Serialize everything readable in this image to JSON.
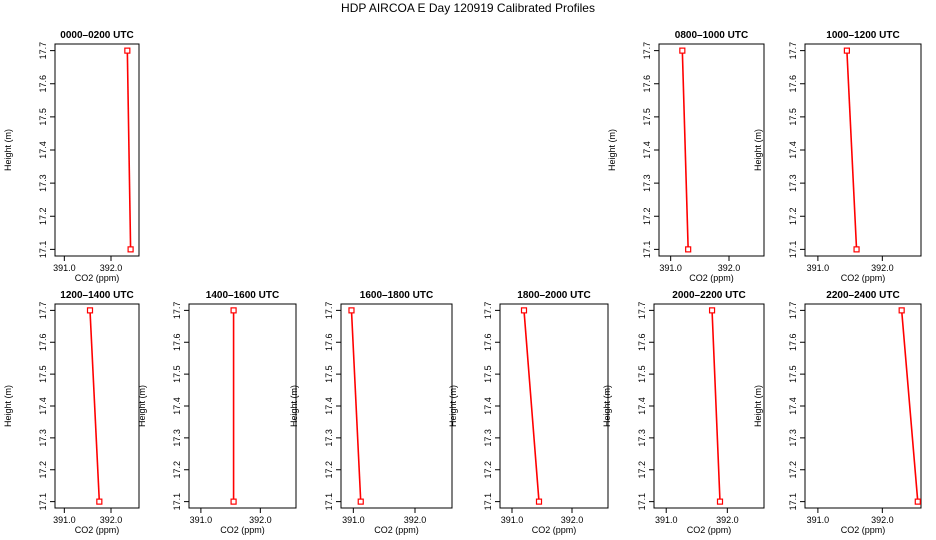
{
  "title": "HDP AIRCOA E  Day 120919  Calibrated Profiles",
  "axes": {
    "xlabel": "CO2 (ppm)",
    "ylabel": "Height (m)",
    "xlim": [
      390.8,
      392.6
    ],
    "ylim": [
      17.08,
      17.72
    ],
    "xticks": [
      "391.0",
      "392.0"
    ],
    "xtick_values": [
      391.0,
      392.0
    ],
    "yticks": [
      "17.1",
      "17.2",
      "17.3",
      "17.4",
      "17.5",
      "17.6",
      "17.7"
    ],
    "ytick_values": [
      17.1,
      17.2,
      17.3,
      17.4,
      17.5,
      17.6,
      17.7
    ]
  },
  "style": {
    "line_color": "#ff0000",
    "marker": "open-square",
    "axis_color": "#000000"
  },
  "chart_data": [
    {
      "type": "line",
      "title": "0000–0200 UTC",
      "x": [
        392.35,
        392.42
      ],
      "y": [
        17.7,
        17.1
      ]
    },
    {
      "type": "line",
      "title": "0800–1000 UTC",
      "x": [
        391.2,
        391.3
      ],
      "y": [
        17.7,
        17.1
      ]
    },
    {
      "type": "line",
      "title": "1000–1200 UTC",
      "x": [
        391.45,
        391.6
      ],
      "y": [
        17.7,
        17.1
      ]
    },
    {
      "type": "line",
      "title": "1200–1400 UTC",
      "x": [
        391.55,
        391.75
      ],
      "y": [
        17.7,
        17.1
      ]
    },
    {
      "type": "line",
      "title": "1400–1600 UTC",
      "x": [
        391.55,
        391.55
      ],
      "y": [
        17.7,
        17.1
      ]
    },
    {
      "type": "line",
      "title": "1600–1800 UTC",
      "x": [
        390.97,
        391.12
      ],
      "y": [
        17.7,
        17.1
      ]
    },
    {
      "type": "line",
      "title": "1800–2000 UTC",
      "x": [
        391.2,
        391.45
      ],
      "y": [
        17.7,
        17.1
      ]
    },
    {
      "type": "line",
      "title": "2000–2200 UTC",
      "x": [
        391.75,
        391.88
      ],
      "y": [
        17.7,
        17.1
      ]
    },
    {
      "type": "line",
      "title": "2200–2400 UTC",
      "x": [
        392.3,
        392.55
      ],
      "y": [
        17.7,
        17.1
      ]
    }
  ]
}
